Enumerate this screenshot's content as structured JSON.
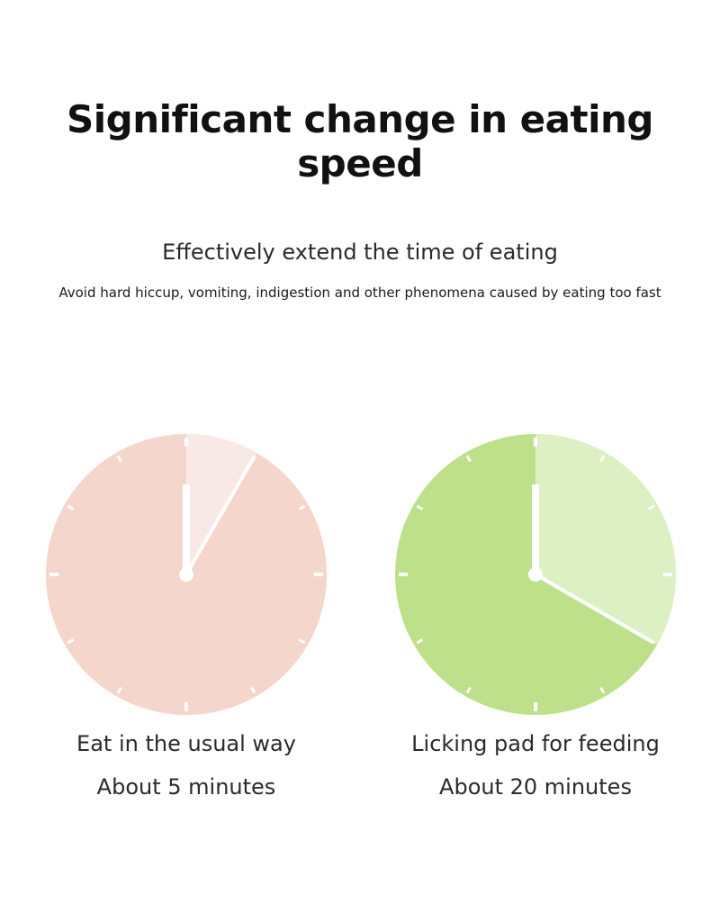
{
  "title": "Significant change in eating speed",
  "subtitle": "Effectively extend the time of eating",
  "note": "Avoid hard hiccup, vomiting, indigestion and other phenomena caused by eating too fast",
  "colors": {
    "left_face": "#f4d6cd",
    "left_wedge": "#f8e9e6",
    "right_face": "#bfe08a",
    "right_wedge": "#ddf0c4",
    "hands": "#ffffff"
  },
  "clocks": [
    {
      "method": "Eat in the usual way",
      "duration": "About 5 minutes",
      "minutes": 5
    },
    {
      "method": "Licking pad for feeding",
      "duration": "About 20 minutes",
      "minutes": 20
    }
  ]
}
